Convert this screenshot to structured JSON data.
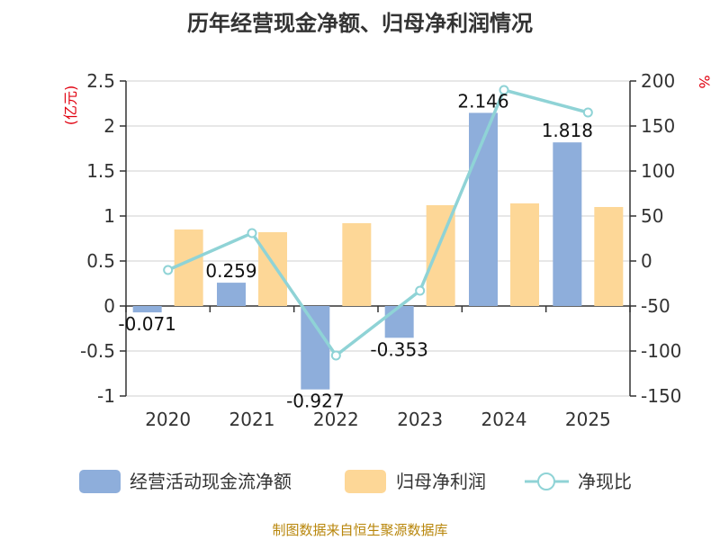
{
  "chart_data": {
    "type": "bar",
    "title": "历年经营现金净额、归母净利润情况",
    "categories": [
      "2020",
      "2021",
      "2022",
      "2023",
      "2024",
      "2025"
    ],
    "left_unit": "(亿元)",
    "right_unit": "%",
    "ylim_left": [
      -1,
      2.5
    ],
    "ylim_right": [
      -150,
      200
    ],
    "left_ticks": [
      "2.5",
      "2",
      "1.5",
      "1",
      "0.5",
      "0",
      "-0.5",
      "-1"
    ],
    "left_tick_values": [
      2.5,
      2,
      1.5,
      1,
      0.5,
      0,
      -0.5,
      -1
    ],
    "right_ticks": [
      "200",
      "150",
      "100",
      "50",
      "0",
      "-50",
      "-100",
      "-150"
    ],
    "right_tick_values": [
      200,
      150,
      100,
      50,
      0,
      -50,
      -100,
      -150
    ],
    "series": [
      {
        "name": "经营活动现金流净额",
        "kind": "bar",
        "axis": "left",
        "color": "#8eaedb",
        "values": [
          -0.071,
          0.259,
          -0.927,
          -0.353,
          2.146,
          1.818
        ],
        "labels": [
          "-0.071",
          "0.259",
          "-0.927",
          "-0.353",
          "2.146",
          "1.818"
        ]
      },
      {
        "name": "归母净利润",
        "kind": "bar",
        "axis": "left",
        "color": "#fdd797",
        "values": [
          0.85,
          0.82,
          0.92,
          1.12,
          1.14,
          1.1
        ]
      },
      {
        "name": "净现比",
        "kind": "line",
        "axis": "right",
        "color": "#8fd3d6",
        "values": [
          -10,
          31,
          -105,
          -33,
          190,
          165
        ]
      }
    ],
    "source": "制图数据来自恒生聚源数据库"
  }
}
